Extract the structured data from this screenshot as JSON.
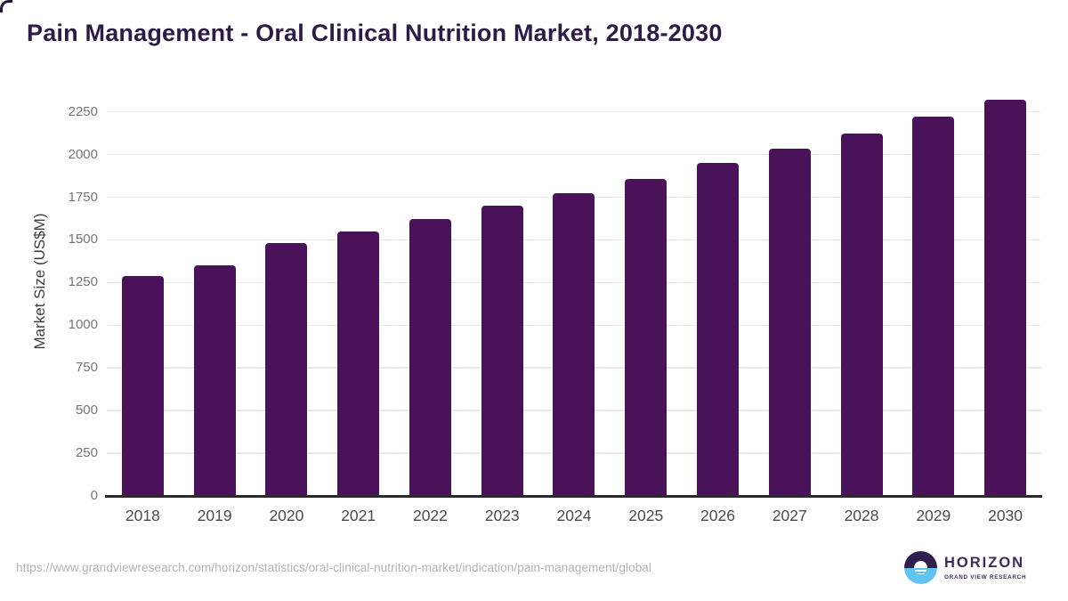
{
  "title": "Pain Management - Oral Clinical Nutrition Market, 2018-2030",
  "chart_data": {
    "type": "bar",
    "title": "Pain Management - Oral Clinical Nutrition Market, 2018-2030",
    "categories": [
      "2018",
      "2019",
      "2020",
      "2021",
      "2022",
      "2023",
      "2024",
      "2025",
      "2026",
      "2027",
      "2028",
      "2029",
      "2030"
    ],
    "values": [
      1290,
      1350,
      1480,
      1550,
      1620,
      1700,
      1775,
      1855,
      1950,
      2035,
      2125,
      2220,
      2320
    ],
    "xlabel": "",
    "ylabel": "Market Size (US$M)",
    "ylim": [
      0,
      2400
    ],
    "y_ticks": [
      0,
      250,
      500,
      750,
      1000,
      1250,
      1500,
      1750,
      2000,
      2250
    ],
    "grid": true,
    "legend": "none",
    "bar_color": "#4a1259"
  },
  "footer": {
    "source_url": "https://www.grandviewresearch.com/horizon/statistics/oral-clinical-nutrition-market/indication/pain-management/global",
    "logo": {
      "name": "HORIZON",
      "subtitle": "GRAND VIEW RESEARCH",
      "icon": "horizon-sun-circle-icon"
    }
  },
  "colors": {
    "title_text": "#2e1a47",
    "bar": "#4a1259",
    "axis_line": "#2b2b2b",
    "gridline": "#eaeaea",
    "y_tick_label": "#757575",
    "x_tick_label": "#4b4b4b",
    "source_url_text": "#b2b2b2",
    "logo_purple": "#3b2a5e",
    "logo_icon_dark": "#2f1e4e",
    "logo_icon_blue": "#5fc4ef",
    "background": "#ffffff"
  }
}
